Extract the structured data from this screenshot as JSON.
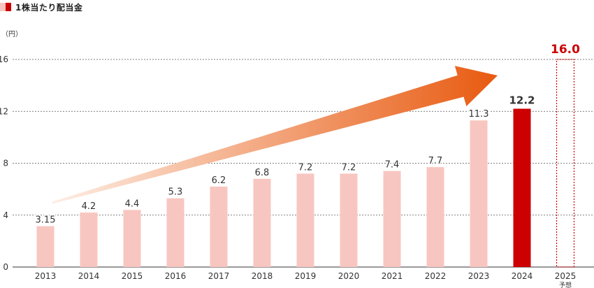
{
  "legend": {
    "items": [
      {
        "color": "#f8c6c0",
        "label": ""
      },
      {
        "color": "#cc0000",
        "label": "1株当たり配当金"
      }
    ]
  },
  "unit_label": "（円）",
  "colors": {
    "bar_past": "#f8c6c0",
    "bar_current": "#cc0000",
    "bar_forecast_outline": "#cc0000",
    "arrow_start": "#fdeee5",
    "arrow_end": "#e85a10",
    "grid": "#555555"
  },
  "chart_data": {
    "type": "bar",
    "categories": [
      "2013",
      "2014",
      "2015",
      "2016",
      "2017",
      "2018",
      "2019",
      "2020",
      "2021",
      "2022",
      "2023",
      "2024",
      "2025"
    ],
    "category_notes": [
      "",
      "",
      "",
      "",
      "",
      "",
      "",
      "",
      "",
      "",
      "",
      "",
      "予想"
    ],
    "values": [
      3.15,
      4.2,
      4.4,
      5.3,
      6.2,
      6.8,
      7.2,
      7.2,
      7.4,
      7.7,
      11.3,
      12.2,
      16.0
    ],
    "value_labels": [
      "3.15",
      "4.2",
      "4.4",
      "5.3",
      "6.2",
      "6.8",
      "7.2",
      "7.2",
      "7.4",
      "7.7",
      "11.3",
      "12.2",
      "16.0"
    ],
    "styles": [
      "past",
      "past",
      "past",
      "past",
      "past",
      "past",
      "past",
      "past",
      "past",
      "past",
      "past",
      "current",
      "forecast"
    ],
    "ylim": [
      0,
      16
    ],
    "yticks": [
      "0",
      "4",
      "8",
      "12",
      "16"
    ],
    "grid": true,
    "trend_arrow": true
  }
}
